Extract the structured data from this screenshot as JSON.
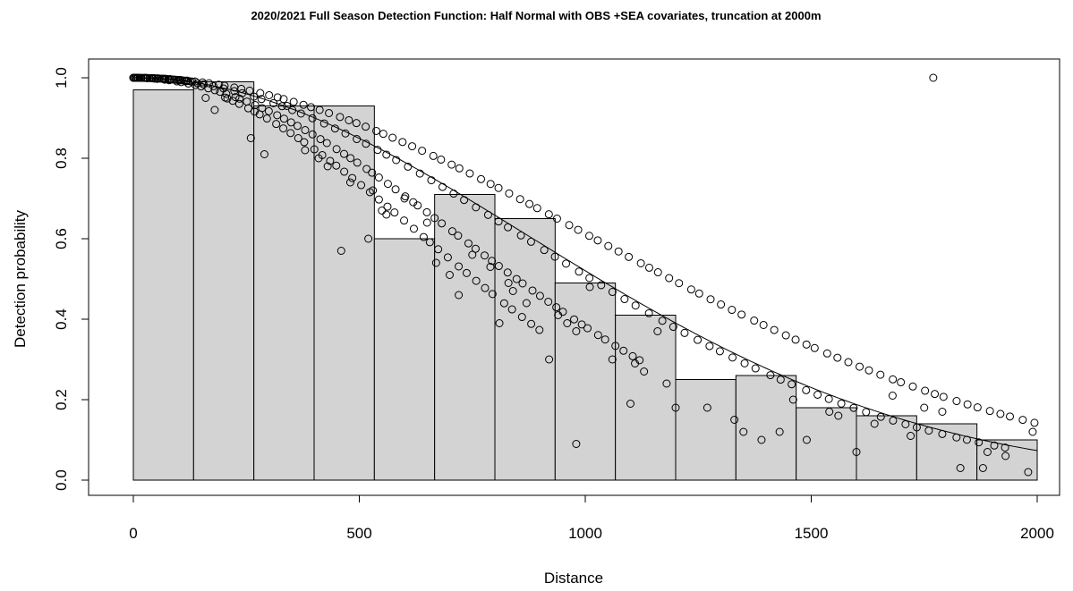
{
  "chart_data": {
    "type": "scatter",
    "title": "2020/2021 Full Season Detection Function: Half Normal with OBS +SEA covariates, truncation at 2000m",
    "xlabel": "Distance",
    "ylabel": "Detection probability",
    "xlim": [
      0,
      2000
    ],
    "ylim": [
      0,
      1
    ],
    "x_ticks": [
      0,
      500,
      1000,
      1500,
      2000
    ],
    "x_tick_labels": [
      "0",
      "500",
      "1000",
      "1500",
      "2000"
    ],
    "y_ticks": [
      0.0,
      0.2,
      0.4,
      0.6,
      0.8,
      1.0
    ],
    "y_tick_labels": [
      "0.0",
      "0.2",
      "0.4",
      "0.6",
      "0.8",
      "1.0"
    ],
    "grid": false,
    "histogram": {
      "bin_edges": [
        0,
        133.33,
        266.67,
        400,
        533.33,
        666.67,
        800,
        933.33,
        1066.67,
        1200,
        1333.33,
        1466.67,
        1600,
        1733.33,
        1866.67,
        2000
      ],
      "heights": [
        0.97,
        0.99,
        0.93,
        0.93,
        0.6,
        0.71,
        0.65,
        0.49,
        0.41,
        0.25,
        0.26,
        0.18,
        0.16,
        0.14,
        0.1
      ],
      "fill": "#d3d3d3",
      "stroke": "#000000"
    },
    "fitted_curve": {
      "sigma": 875,
      "description_type": "half-normal"
    },
    "point_bands": [
      {
        "sigma": 1010,
        "x_start": 0,
        "x_end": 1990,
        "count": 95
      },
      {
        "sigma": 860,
        "x_start": 0,
        "x_end": 1930,
        "count": 80
      },
      {
        "sigma": 720,
        "x_start": 0,
        "x_end": 1120,
        "count": 70
      },
      {
        "sigma": 640,
        "x_start": 200,
        "x_end": 900,
        "count": 40
      }
    ],
    "scattered_points": [
      [
        160,
        0.95
      ],
      [
        180,
        0.92
      ],
      [
        260,
        0.85
      ],
      [
        290,
        0.81
      ],
      [
        340,
        0.93
      ],
      [
        380,
        0.82
      ],
      [
        410,
        0.8
      ],
      [
        430,
        0.78
      ],
      [
        460,
        0.57
      ],
      [
        480,
        0.74
      ],
      [
        520,
        0.6
      ],
      [
        530,
        0.72
      ],
      [
        550,
        0.67
      ],
      [
        560,
        0.66
      ],
      [
        600,
        0.7
      ],
      [
        650,
        0.64
      ],
      [
        670,
        0.54
      ],
      [
        700,
        0.51
      ],
      [
        720,
        0.46
      ],
      [
        750,
        0.56
      ],
      [
        790,
        0.53
      ],
      [
        810,
        0.39
      ],
      [
        830,
        0.49
      ],
      [
        840,
        0.47
      ],
      [
        870,
        0.44
      ],
      [
        920,
        0.3
      ],
      [
        940,
        0.41
      ],
      [
        960,
        0.39
      ],
      [
        980,
        0.09
      ],
      [
        980,
        0.37
      ],
      [
        1010,
        0.48
      ],
      [
        1060,
        0.3
      ],
      [
        1100,
        0.19
      ],
      [
        1110,
        0.29
      ],
      [
        1130,
        0.27
      ],
      [
        1160,
        0.37
      ],
      [
        1180,
        0.24
      ],
      [
        1200,
        0.18
      ],
      [
        1270,
        0.18
      ],
      [
        1330,
        0.15
      ],
      [
        1350,
        0.12
      ],
      [
        1390,
        0.1
      ],
      [
        1430,
        0.12
      ],
      [
        1460,
        0.2
      ],
      [
        1490,
        0.1
      ],
      [
        1540,
        0.17
      ],
      [
        1560,
        0.16
      ],
      [
        1600,
        0.07
      ],
      [
        1640,
        0.14
      ],
      [
        1680,
        0.21
      ],
      [
        1720,
        0.11
      ],
      [
        1750,
        0.18
      ],
      [
        1770,
        1.0
      ],
      [
        1790,
        0.17
      ],
      [
        1830,
        0.03
      ],
      [
        1880,
        0.03
      ],
      [
        1890,
        0.07
      ],
      [
        1930,
        0.06
      ],
      [
        1980,
        0.02
      ],
      [
        1990,
        0.12
      ]
    ]
  }
}
